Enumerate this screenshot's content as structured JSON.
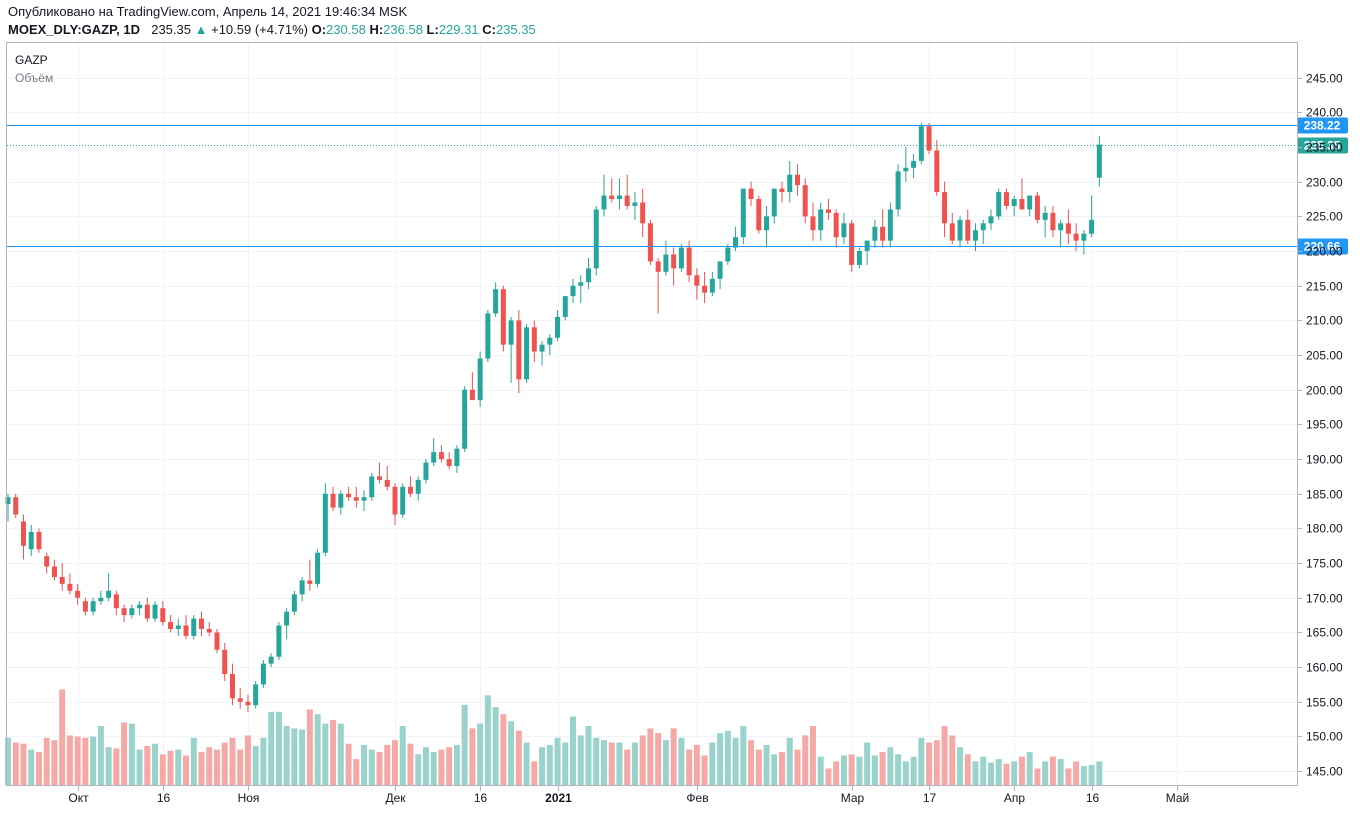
{
  "header": {
    "published": "Опубликовано на TradingView.com, Апрель 14, 2021 19:46:34 MSK",
    "symbol": "MOEX_DLY:GAZP, 1D",
    "last": "235.35",
    "change_arrow": "▲",
    "change": "+10.59 (+4.71%)",
    "o_label": "O:",
    "o_value": "230.58",
    "h_label": "H:",
    "h_value": "236.58",
    "l_label": "L:",
    "l_value": "229.31",
    "c_label": "C:",
    "c_value": "235.35"
  },
  "legend": {
    "ticker": "GAZP",
    "volume_label": "Объём"
  },
  "colors": {
    "up": "#26a69a",
    "down": "#ef5350",
    "vol_up": "#9ad2cc",
    "vol_down": "#f5a9a7",
    "line": "#2196f3",
    "grid": "#f0f3fa"
  },
  "chart_data": {
    "type": "candlestick",
    "ylim": [
      143,
      250
    ],
    "y_ticks": [
      "245.00",
      "240.00",
      "235.00",
      "230.00",
      "225.00",
      "220.00",
      "215.00",
      "210.00",
      "205.00",
      "200.00",
      "195.00",
      "190.00",
      "185.00",
      "180.00",
      "175.00",
      "170.00",
      "165.00",
      "160.00",
      "155.00",
      "150.00",
      "145.00"
    ],
    "x_ticks": [
      {
        "label": "Окт",
        "index": 9
      },
      {
        "label": "16",
        "index": 20
      },
      {
        "label": "Ноя",
        "index": 31
      },
      {
        "label": "Дек",
        "index": 50
      },
      {
        "label": "16",
        "index": 61
      },
      {
        "label": "2021",
        "index": 71
      },
      {
        "label": "Фев",
        "index": 89
      },
      {
        "label": "Мар",
        "index": 109
      },
      {
        "label": "17",
        "index": 119
      },
      {
        "label": "Апр",
        "index": 130
      },
      {
        "label": "16",
        "index": 140
      },
      {
        "label": "Май",
        "index": 151
      }
    ],
    "price_lines": [
      {
        "label": "238.22",
        "value": 238.22,
        "style": "solid"
      },
      {
        "label": "220.66",
        "value": 220.66,
        "style": "solid"
      }
    ],
    "last_price": {
      "label": "235.35",
      "value": 235.35
    },
    "volume_range": [
      0,
      100
    ],
    "candles": [
      [
        183.5,
        185.0,
        181.0,
        184.5
      ],
      [
        184.5,
        185.0,
        181.5,
        182.0
      ],
      [
        181.0,
        182.0,
        175.5,
        177.5
      ],
      [
        177.0,
        180.5,
        176.0,
        179.5
      ],
      [
        179.5,
        180.0,
        176.5,
        177.0
      ],
      [
        176.0,
        176.5,
        173.5,
        174.5
      ],
      [
        174.5,
        175.5,
        172.5,
        173.0
      ],
      [
        173.0,
        175.0,
        171.0,
        172.0
      ],
      [
        172.0,
        173.5,
        170.5,
        171.0
      ],
      [
        171.0,
        172.0,
        169.0,
        170.0
      ],
      [
        169.5,
        170.0,
        167.5,
        168.0
      ],
      [
        168.0,
        170.0,
        167.5,
        169.5
      ],
      [
        169.5,
        171.0,
        169.0,
        170.0
      ],
      [
        170.0,
        173.5,
        169.5,
        171.0
      ],
      [
        170.5,
        171.0,
        167.5,
        168.5
      ],
      [
        168.5,
        169.0,
        166.5,
        167.5
      ],
      [
        167.5,
        169.0,
        167.0,
        168.5
      ],
      [
        168.5,
        169.5,
        167.5,
        169.0
      ],
      [
        169.0,
        170.0,
        166.5,
        167.0
      ],
      [
        167.0,
        169.5,
        166.5,
        169.0
      ],
      [
        168.5,
        169.5,
        166.0,
        166.5
      ],
      [
        166.5,
        167.5,
        165.0,
        165.5
      ],
      [
        165.5,
        167.0,
        164.5,
        166.0
      ],
      [
        166.0,
        167.5,
        164.0,
        164.5
      ],
      [
        164.5,
        167.5,
        164.0,
        167.0
      ],
      [
        167.0,
        168.0,
        164.5,
        165.5
      ],
      [
        165.5,
        166.5,
        164.5,
        165.0
      ],
      [
        165.0,
        165.5,
        162.0,
        162.5
      ],
      [
        162.5,
        163.5,
        158.0,
        159.0
      ],
      [
        159.0,
        160.5,
        154.5,
        155.5
      ],
      [
        155.5,
        157.0,
        154.0,
        155.0
      ],
      [
        155.0,
        156.0,
        153.5,
        154.5
      ],
      [
        154.5,
        158.0,
        154.0,
        157.5
      ],
      [
        157.5,
        161.0,
        157.0,
        160.5
      ],
      [
        160.5,
        162.0,
        160.0,
        161.5
      ],
      [
        161.5,
        166.5,
        161.0,
        166.0
      ],
      [
        166.0,
        168.5,
        164.0,
        168.0
      ],
      [
        168.0,
        171.0,
        167.5,
        170.5
      ],
      [
        170.5,
        173.0,
        169.5,
        172.5
      ],
      [
        172.5,
        175.5,
        171.0,
        172.0
      ],
      [
        172.0,
        177.0,
        171.5,
        176.5
      ],
      [
        176.5,
        186.5,
        176.0,
        185.0
      ],
      [
        185.0,
        186.0,
        182.5,
        183.0
      ],
      [
        183.0,
        185.5,
        182.0,
        185.0
      ],
      [
        185.0,
        186.0,
        184.0,
        184.5
      ],
      [
        184.5,
        186.0,
        183.0,
        184.0
      ],
      [
        184.0,
        185.5,
        182.5,
        184.5
      ],
      [
        184.5,
        188.0,
        184.0,
        187.5
      ],
      [
        187.5,
        189.5,
        186.5,
        187.0
      ],
      [
        187.0,
        189.0,
        185.5,
        186.0
      ],
      [
        186.0,
        186.5,
        180.5,
        182.0
      ],
      [
        182.0,
        186.5,
        181.5,
        186.0
      ],
      [
        186.0,
        187.5,
        184.5,
        185.0
      ],
      [
        185.0,
        187.5,
        184.0,
        187.0
      ],
      [
        187.0,
        190.0,
        186.5,
        189.5
      ],
      [
        189.5,
        193.0,
        189.0,
        191.0
      ],
      [
        191.0,
        192.0,
        189.5,
        190.0
      ],
      [
        190.0,
        191.0,
        188.5,
        189.0
      ],
      [
        189.0,
        192.0,
        188.0,
        191.5
      ],
      [
        191.5,
        200.5,
        191.0,
        200.0
      ],
      [
        200.0,
        202.5,
        199.0,
        198.5
      ],
      [
        198.5,
        205.5,
        197.5,
        204.5
      ],
      [
        204.5,
        211.5,
        204.0,
        211.0
      ],
      [
        211.0,
        215.5,
        210.5,
        214.5
      ],
      [
        214.5,
        215.0,
        205.5,
        206.5
      ],
      [
        206.5,
        210.5,
        201.0,
        210.0
      ],
      [
        210.0,
        211.5,
        199.5,
        201.5
      ],
      [
        201.5,
        209.5,
        201.0,
        209.0
      ],
      [
        209.0,
        210.0,
        204.0,
        205.5
      ],
      [
        205.5,
        207.0,
        203.5,
        206.5
      ],
      [
        206.5,
        208.0,
        205.0,
        207.5
      ],
      [
        207.5,
        211.5,
        207.0,
        210.5
      ],
      [
        210.5,
        213.5,
        210.0,
        213.5
      ],
      [
        213.5,
        216.0,
        212.5,
        215.0
      ],
      [
        215.0,
        216.5,
        212.5,
        215.5
      ],
      [
        215.5,
        219.0,
        214.5,
        217.5
      ],
      [
        217.5,
        226.5,
        216.5,
        226.0
      ],
      [
        226.0,
        231.0,
        225.0,
        228.0
      ],
      [
        228.0,
        230.5,
        227.0,
        227.5
      ],
      [
        227.5,
        230.5,
        226.0,
        228.0
      ],
      [
        228.0,
        231.0,
        226.0,
        226.5
      ],
      [
        226.5,
        228.5,
        224.5,
        227.0
      ],
      [
        227.0,
        229.0,
        222.0,
        224.0
      ],
      [
        224.0,
        224.5,
        218.0,
        218.5
      ],
      [
        218.5,
        219.0,
        211.0,
        217.0
      ],
      [
        217.0,
        221.5,
        216.5,
        219.5
      ],
      [
        219.5,
        220.5,
        215.0,
        217.5
      ],
      [
        217.5,
        221.0,
        217.0,
        220.5
      ],
      [
        220.5,
        221.5,
        215.5,
        216.5
      ],
      [
        216.5,
        217.5,
        213.0,
        215.0
      ],
      [
        215.0,
        217.0,
        212.5,
        214.0
      ],
      [
        214.0,
        217.0,
        213.5,
        216.0
      ],
      [
        216.0,
        218.5,
        214.5,
        218.5
      ],
      [
        218.5,
        221.0,
        218.0,
        220.5
      ],
      [
        220.5,
        223.5,
        220.0,
        222.0
      ],
      [
        222.0,
        229.0,
        221.0,
        229.0
      ],
      [
        229.0,
        230.0,
        226.5,
        227.5
      ],
      [
        227.5,
        228.0,
        222.5,
        223.0
      ],
      [
        223.0,
        226.5,
        220.5,
        225.0
      ],
      [
        225.0,
        229.0,
        224.0,
        229.0
      ],
      [
        229.0,
        230.0,
        227.0,
        228.5
      ],
      [
        228.5,
        233.0,
        227.0,
        231.0
      ],
      [
        231.0,
        232.5,
        228.0,
        229.5
      ],
      [
        229.5,
        230.5,
        224.0,
        225.0
      ],
      [
        225.0,
        227.0,
        221.5,
        223.0
      ],
      [
        223.0,
        227.0,
        221.5,
        226.0
      ],
      [
        226.0,
        227.5,
        224.5,
        225.5
      ],
      [
        225.5,
        226.0,
        220.5,
        222.0
      ],
      [
        222.0,
        225.5,
        221.0,
        224.0
      ],
      [
        224.0,
        224.5,
        217.0,
        218.0
      ],
      [
        218.0,
        220.5,
        217.5,
        220.0
      ],
      [
        220.0,
        221.5,
        218.0,
        221.5
      ],
      [
        221.5,
        224.5,
        220.5,
        223.5
      ],
      [
        223.5,
        226.0,
        220.5,
        221.5
      ],
      [
        221.5,
        227.0,
        220.5,
        226.0
      ],
      [
        226.0,
        232.5,
        225.0,
        231.5
      ],
      [
        231.5,
        235.0,
        230.0,
        232.0
      ],
      [
        232.0,
        234.0,
        230.5,
        233.0
      ],
      [
        233.0,
        238.5,
        232.5,
        238.0
      ],
      [
        238.0,
        238.5,
        234.0,
        234.5
      ],
      [
        234.5,
        236.0,
        228.0,
        228.5
      ],
      [
        228.5,
        230.0,
        222.0,
        224.0
      ],
      [
        224.0,
        225.5,
        221.0,
        221.5
      ],
      [
        221.5,
        225.0,
        220.5,
        224.5
      ],
      [
        224.5,
        226.0,
        221.0,
        221.5
      ],
      [
        221.5,
        224.0,
        220.0,
        223.0
      ],
      [
        223.0,
        224.5,
        221.0,
        224.0
      ],
      [
        224.0,
        226.0,
        223.0,
        225.0
      ],
      [
        225.0,
        229.0,
        224.5,
        228.5
      ],
      [
        228.5,
        229.0,
        226.0,
        226.5
      ],
      [
        226.5,
        228.0,
        225.0,
        227.5
      ],
      [
        227.5,
        230.5,
        226.0,
        226.0
      ],
      [
        226.0,
        228.0,
        225.0,
        228.0
      ],
      [
        228.0,
        228.5,
        224.0,
        224.5
      ],
      [
        224.5,
        226.5,
        222.0,
        225.5
      ],
      [
        225.5,
        226.5,
        222.0,
        223.0
      ],
      [
        223.0,
        224.5,
        220.5,
        224.0
      ],
      [
        224.0,
        226.0,
        221.0,
        222.5
      ],
      [
        222.5,
        224.0,
        220.0,
        221.5
      ],
      [
        221.5,
        223.0,
        219.5,
        222.5
      ],
      [
        222.5,
        228.0,
        222.0,
        224.5
      ],
      [
        230.58,
        236.58,
        229.31,
        235.35
      ]
    ],
    "volumes": [
      40,
      36,
      35,
      30,
      28,
      40,
      38,
      81,
      42,
      41,
      40,
      41,
      50,
      32,
      31,
      53,
      52,
      30,
      33,
      35,
      26,
      29,
      30,
      25,
      40,
      28,
      32,
      30,
      36,
      40,
      30,
      42,
      33,
      40,
      62,
      62,
      50,
      48,
      47,
      64,
      60,
      52,
      55,
      52,
      35,
      22,
      34,
      30,
      28,
      34,
      38,
      50,
      35,
      26,
      32,
      28,
      30,
      32,
      34,
      68,
      48,
      52,
      76,
      66,
      60,
      54,
      46,
      36,
      20,
      32,
      34,
      40,
      36,
      58,
      42,
      50,
      40,
      38,
      36,
      36,
      30,
      36,
      42,
      48,
      44,
      38,
      48,
      40,
      30,
      34,
      25,
      36,
      44,
      46,
      40,
      50,
      38,
      30,
      34,
      26,
      28,
      40,
      30,
      42,
      50,
      24,
      14,
      20,
      25,
      26,
      24,
      36,
      25,
      28,
      32,
      26,
      20,
      24,
      40,
      36,
      38,
      50,
      42,
      32,
      26,
      20,
      24,
      19,
      22,
      18,
      20,
      24,
      28,
      14,
      20,
      24,
      22,
      14,
      20,
      16,
      17,
      20,
      24
    ]
  }
}
